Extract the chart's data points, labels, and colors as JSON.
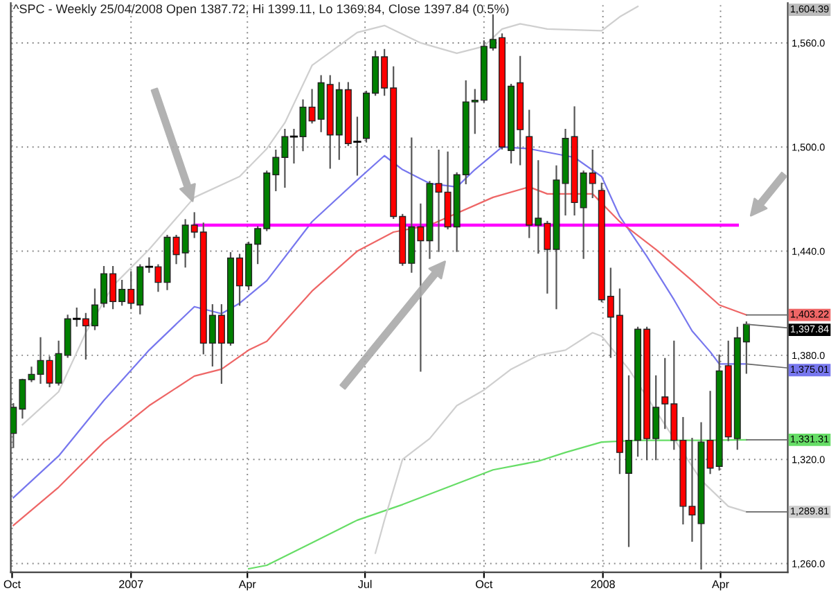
{
  "chart_data": {
    "type": "candlestick",
    "title": "^SPC - Weekly 25/04/2008 Open 1387.72, Hi 1399.11, Lo 1369.84, Close 1397.84 (0.5%)",
    "x": [
      "2006-10-02",
      "2006-10-09",
      "2006-10-16",
      "2006-10-23",
      "2006-10-30",
      "2006-11-06",
      "2006-11-13",
      "2006-11-20",
      "2006-11-27",
      "2006-12-04",
      "2006-12-11",
      "2006-12-18",
      "2006-12-25",
      "2007-01-01",
      "2007-01-08",
      "2007-01-15",
      "2007-01-22",
      "2007-01-29",
      "2007-02-05",
      "2007-02-12",
      "2007-02-19",
      "2007-02-26",
      "2007-03-05",
      "2007-03-12",
      "2007-03-19",
      "2007-03-26",
      "2007-04-02",
      "2007-04-09",
      "2007-04-16",
      "2007-04-23",
      "2007-04-30",
      "2007-05-07",
      "2007-05-14",
      "2007-05-21",
      "2007-05-28",
      "2007-06-04",
      "2007-06-11",
      "2007-06-18",
      "2007-06-25",
      "2007-07-02",
      "2007-07-09",
      "2007-07-16",
      "2007-07-23",
      "2007-07-30",
      "2007-08-06",
      "2007-08-13",
      "2007-08-20",
      "2007-08-27",
      "2007-09-03",
      "2007-09-10",
      "2007-09-17",
      "2007-09-24",
      "2007-10-01",
      "2007-10-08",
      "2007-10-15",
      "2007-10-22",
      "2007-10-29",
      "2007-11-05",
      "2007-11-12",
      "2007-11-19",
      "2007-11-26",
      "2007-12-03",
      "2007-12-10",
      "2007-12-17",
      "2007-12-24",
      "2007-12-31",
      "2008-01-07",
      "2008-01-14",
      "2008-01-21",
      "2008-01-28",
      "2008-02-04",
      "2008-02-11",
      "2008-02-18",
      "2008-02-25",
      "2008-03-03",
      "2008-03-10",
      "2008-03-17",
      "2008-03-24",
      "2008-03-31",
      "2008-04-07",
      "2008-04-14",
      "2008-04-21"
    ],
    "ohlc": [
      [
        1335,
        1352,
        1327,
        1350
      ],
      [
        1349,
        1366,
        1344,
        1366
      ],
      [
        1366,
        1373,
        1365,
        1369
      ],
      [
        1369,
        1390,
        1364,
        1377
      ],
      [
        1377,
        1379,
        1362,
        1364
      ],
      [
        1364,
        1388,
        1363,
        1381
      ],
      [
        1380,
        1403,
        1379,
        1401
      ],
      [
        1401,
        1407,
        1397,
        1401
      ],
      [
        1401,
        1404,
        1378,
        1397
      ],
      [
        1397,
        1418,
        1395,
        1409
      ],
      [
        1410,
        1431,
        1408,
        1427
      ],
      [
        1427,
        1431,
        1407,
        1411
      ],
      [
        1411,
        1423,
        1409,
        1418
      ],
      [
        1418,
        1428,
        1407,
        1410
      ],
      [
        1409,
        1432,
        1404,
        1431
      ],
      [
        1431,
        1436,
        1428,
        1431
      ],
      [
        1431,
        1432,
        1417,
        1422
      ],
      [
        1422,
        1449,
        1418,
        1448
      ],
      [
        1448,
        1449,
        1433,
        1438
      ],
      [
        1439,
        1458,
        1431,
        1455
      ],
      [
        1455,
        1462,
        1448,
        1451
      ],
      [
        1451,
        1456,
        1381,
        1387
      ],
      [
        1387,
        1409,
        1374,
        1403
      ],
      [
        1403,
        1409,
        1364,
        1387
      ],
      [
        1387,
        1439,
        1386,
        1436
      ],
      [
        1436,
        1438,
        1409,
        1420
      ],
      [
        1420,
        1445,
        1418,
        1444
      ],
      [
        1444,
        1454,
        1433,
        1453
      ],
      [
        1453,
        1486,
        1452,
        1485
      ],
      [
        1484,
        1498,
        1475,
        1494
      ],
      [
        1494,
        1510,
        1477,
        1506
      ],
      [
        1506,
        1510,
        1491,
        1506
      ],
      [
        1506,
        1527,
        1498,
        1523
      ],
      [
        1523,
        1533,
        1514,
        1515
      ],
      [
        1516,
        1541,
        1509,
        1537
      ],
      [
        1536,
        1541,
        1488,
        1507
      ],
      [
        1507,
        1537,
        1493,
        1533
      ],
      [
        1533,
        1537,
        1501,
        1502
      ],
      [
        1503,
        1517,
        1484,
        1503
      ],
      [
        1505,
        1532,
        1503,
        1531
      ],
      [
        1531,
        1555,
        1530,
        1552
      ],
      [
        1552,
        1556,
        1530,
        1534
      ],
      [
        1534,
        1546,
        1459,
        1460
      ],
      [
        1460,
        1461,
        1432,
        1433
      ],
      [
        1433,
        1505,
        1428,
        1454
      ],
      [
        1454,
        1467,
        1371,
        1446
      ],
      [
        1446,
        1480,
        1436,
        1479
      ],
      [
        1479,
        1498,
        1440,
        1474
      ],
      [
        1474,
        1497,
        1453,
        1454
      ],
      [
        1454,
        1485,
        1440,
        1484
      ],
      [
        1484,
        1538,
        1479,
        1526
      ],
      [
        1526,
        1533,
        1508,
        1527
      ],
      [
        1527,
        1561,
        1526,
        1558
      ],
      [
        1557,
        1576,
        1556,
        1562
      ],
      [
        1563,
        1565,
        1499,
        1500
      ],
      [
        1498,
        1536,
        1491,
        1535
      ],
      [
        1537,
        1552,
        1490,
        1510
      ],
      [
        1506,
        1521,
        1448,
        1455
      ],
      [
        1455,
        1492,
        1439,
        1459
      ],
      [
        1456,
        1457,
        1416,
        1441
      ],
      [
        1441,
        1489,
        1407,
        1481
      ],
      [
        1479,
        1510,
        1461,
        1505
      ],
      [
        1506,
        1523,
        1461,
        1468
      ],
      [
        1465,
        1486,
        1436,
        1485
      ],
      [
        1485,
        1498,
        1471,
        1479
      ],
      [
        1475,
        1479,
        1411,
        1412
      ],
      [
        1414,
        1430,
        1379,
        1402
      ],
      [
        1403,
        1418,
        1312,
        1324
      ],
      [
        1312,
        1368,
        1270,
        1331
      ],
      [
        1331,
        1396,
        1322,
        1395
      ],
      [
        1395,
        1396,
        1320,
        1332
      ],
      [
        1332,
        1368,
        1320,
        1350
      ],
      [
        1356,
        1378,
        1338,
        1352
      ],
      [
        1352,
        1388,
        1326,
        1331
      ],
      [
        1331,
        1344,
        1283,
        1293
      ],
      [
        1293,
        1332,
        1273,
        1288
      ],
      [
        1283,
        1341,
        1257,
        1330
      ],
      [
        1331,
        1359,
        1312,
        1315
      ],
      [
        1316,
        1380,
        1314,
        1371
      ],
      [
        1374,
        1388,
        1331,
        1333
      ],
      [
        1332,
        1396,
        1326,
        1390
      ],
      [
        1387.72,
        1399.11,
        1369.84,
        1397.84
      ]
    ],
    "colors": [
      "#008000",
      "#008000",
      "#008000",
      "#008000",
      "#ff0000",
      "#008000",
      "#008000",
      "#000000",
      "#ff0000",
      "#008000",
      "#008000",
      "#ff0000",
      "#008000",
      "#ff0000",
      "#008000",
      "#000000",
      "#ff0000",
      "#008000",
      "#ff0000",
      "#008000",
      "#ff0000",
      "#ff0000",
      "#008000",
      "#ff0000",
      "#008000",
      "#ff0000",
      "#008000",
      "#008000",
      "#008000",
      "#008000",
      "#008000",
      "#000000",
      "#008000",
      "#ff0000",
      "#008000",
      "#ff0000",
      "#008000",
      "#ff0000",
      "#000000",
      "#008000",
      "#008000",
      "#ff0000",
      "#ff0000",
      "#ff0000",
      "#008000",
      "#ff0000",
      "#008000",
      "#ff0000",
      "#ff0000",
      "#008000",
      "#008000",
      "#008000",
      "#008000",
      "#008000",
      "#ff0000",
      "#008000",
      "#ff0000",
      "#ff0000",
      "#008000",
      "#ff0000",
      "#008000",
      "#008000",
      "#ff0000",
      "#008000",
      "#ff0000",
      "#ff0000",
      "#ff0000",
      "#ff0000",
      "#008000",
      "#008000",
      "#ff0000",
      "#008000",
      "#ff0000",
      "#ff0000",
      "#ff0000",
      "#ff0000",
      "#008000",
      "#ff0000",
      "#008000",
      "#ff0000",
      "#008000",
      "#008000"
    ],
    "series": [
      {
        "type": "line",
        "color": "#7777ee",
        "x": [
          "2006-10-02",
          "2006-11-06",
          "2006-12-11",
          "2007-01-15",
          "2007-02-19",
          "2007-03-12",
          "2007-03-26",
          "2007-04-16",
          "2007-05-21",
          "2007-06-25",
          "2007-07-16",
          "2007-07-30",
          "2007-08-20",
          "2007-09-10",
          "2007-09-24",
          "2007-10-15",
          "2007-11-05",
          "2007-11-19",
          "2007-12-10",
          "2007-12-31",
          "2008-01-14",
          "2008-02-04",
          "2008-02-25",
          "2008-03-10",
          "2008-03-24",
          "2008-03-31",
          "2008-04-21"
        ],
        "values": [
          1298,
          1322,
          1354,
          1383,
          1408,
          1404,
          1410,
          1423,
          1457,
          1481,
          1495,
          1487,
          1479,
          1477,
          1487,
          1500,
          1499,
          1497,
          1494,
          1483,
          1460,
          1437,
          1412,
          1394,
          1382,
          1375,
          1375.01
        ]
      },
      {
        "type": "line",
        "color": "#ee6666",
        "x": [
          "2006-10-02",
          "2006-11-06",
          "2006-12-11",
          "2007-01-15",
          "2007-02-19",
          "2007-03-12",
          "2007-04-02",
          "2007-04-16",
          "2007-05-21",
          "2007-06-25",
          "2007-07-23",
          "2007-08-20",
          "2007-10-08",
          "2007-11-05",
          "2007-11-19",
          "2007-12-24",
          "2008-01-14",
          "2008-02-11",
          "2008-03-10",
          "2008-03-31",
          "2008-04-21"
        ],
        "values": [
          1282,
          1304,
          1330,
          1351,
          1368,
          1372,
          1383,
          1388,
          1417,
          1440,
          1451,
          1455,
          1471,
          1477,
          1473,
          1473,
          1457,
          1441,
          1423,
          1409,
          1403.22
        ]
      },
      {
        "type": "line",
        "color": "#66dd66",
        "x": [
          "2007-04-02",
          "2007-04-16",
          "2007-05-21",
          "2007-06-25",
          "2007-07-30",
          "2007-09-03",
          "2007-10-08",
          "2007-11-12",
          "2007-12-03",
          "2007-12-31",
          "2008-01-28",
          "2008-03-17",
          "2008-04-21"
        ],
        "values": [
          1257,
          1259,
          1272,
          1285,
          1294,
          1304,
          1314,
          1319,
          1324,
          1330,
          1331,
          1331,
          1331.31
        ]
      },
      {
        "type": "line",
        "color": "#cfcfcf",
        "x": [
          "2006-10-09",
          "2006-11-06",
          "2006-11-27",
          "2006-12-18",
          "2007-01-15",
          "2007-02-19",
          "2007-03-26",
          "2007-04-16",
          "2007-04-30",
          "2007-05-21",
          "2007-06-25",
          "2007-07-16",
          "2007-08-13",
          "2007-09-10",
          "2007-10-01",
          "2007-10-15",
          "2007-10-29",
          "2007-11-19",
          "2007-12-31",
          "2008-01-14",
          "2008-01-28"
        ],
        "values": [
          1340,
          1359,
          1393,
          1420,
          1441,
          1471,
          1483,
          1499,
          1514,
          1547,
          1566,
          1570,
          1560,
          1554,
          1558,
          1568,
          1571,
          1568,
          1567,
          1575,
          1581
        ]
      },
      {
        "type": "line",
        "color": "#cfcfcf",
        "x": [
          "2007-07-09",
          "2007-07-16",
          "2007-07-30",
          "2007-08-20",
          "2007-09-10",
          "2007-10-01",
          "2007-10-22",
          "2007-11-12",
          "2007-12-03",
          "2007-12-24",
          "2007-12-31",
          "2008-01-21",
          "2008-02-11",
          "2008-02-25",
          "2008-03-17",
          "2008-04-07",
          "2008-04-21"
        ],
        "values": [
          1266,
          1285,
          1320,
          1332,
          1351,
          1360,
          1372,
          1380,
          1383,
          1393,
          1391,
          1372,
          1348,
          1332,
          1308,
          1293,
          1289.81
        ]
      },
      {
        "type": "line",
        "color": "#ff00ff",
        "x": [
          "2007-02-19",
          "2008-04-14"
        ],
        "values": [
          1455,
          1455
        ]
      }
    ],
    "annotations": [
      {
        "text": "1,403.22",
        "x": "2008-04-21",
        "y": 1403.22
      },
      {
        "text": "1,397.84",
        "x": "2008-04-21",
        "y": 1397.84
      },
      {
        "text": "1,375.01",
        "x": "2008-04-21",
        "y": 1375.01
      },
      {
        "text": "1,331.31",
        "x": "2008-04-21",
        "y": 1331.31
      },
      {
        "text": "1,289.81",
        "x": "2008-04-21",
        "y": 1289.81
      },
      "1,604.39"
    ],
    "xlim": [
      "2006-09-30",
      "2008-05-23"
    ],
    "xticks": [
      {
        "value": "2006-10-01",
        "label": "Oct"
      },
      {
        "value": "2007-01-01",
        "label": "2007"
      },
      {
        "value": "2007-04-01",
        "label": "Apr"
      },
      {
        "value": "2007-07-01",
        "label": "Jul"
      },
      {
        "value": "2007-10-01",
        "label": "Oct"
      },
      {
        "value": "2008-01-01",
        "label": "2008"
      },
      {
        "value": "2008-04-01",
        "label": "Apr"
      }
    ],
    "ylim": [
      1255,
      1583
    ],
    "yticks": [
      {
        "value": 1260,
        "label": "1,260.0"
      },
      {
        "value": 1320,
        "label": "1,320.0"
      },
      {
        "value": 1380,
        "label": "1,380.0"
      },
      {
        "value": 1440,
        "label": "1,440.0"
      },
      {
        "value": 1500,
        "label": "1,500.0"
      },
      {
        "value": 1560,
        "label": "1,560.0"
      }
    ],
    "grid": true
  }
}
